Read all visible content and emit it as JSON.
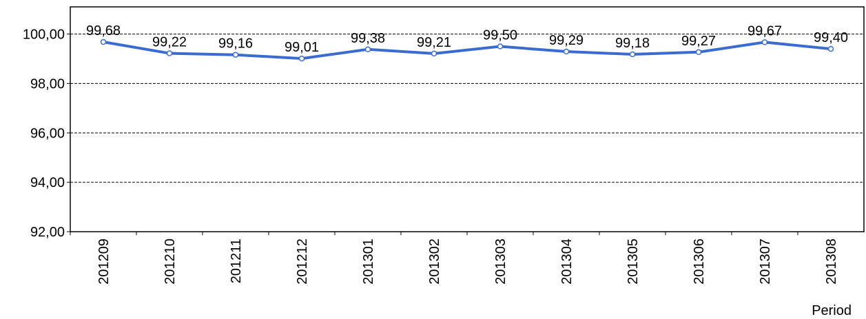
{
  "chart_data": {
    "type": "line",
    "categories": [
      "201209",
      "201210",
      "201211",
      "201212",
      "201301",
      "201302",
      "201303",
      "201304",
      "201305",
      "201306",
      "201307",
      "201308"
    ],
    "series": [
      {
        "color": "#3a6bd0",
        "values": [
          99.68,
          99.22,
          99.16,
          99.01,
          99.38,
          99.21,
          99.5,
          99.29,
          99.18,
          99.27,
          99.67,
          99.4
        ],
        "value_labels": [
          "99,68",
          "99,22",
          "99,16",
          "99,01",
          "99,38",
          "99,21",
          "99,50",
          "99,29",
          "99,18",
          "99,27",
          "99,67",
          "99,40"
        ]
      }
    ],
    "ylim": [
      92,
      101.1
    ],
    "yticks": [
      {
        "value": 92,
        "label": "92,00"
      },
      {
        "value": 94,
        "label": "94,00"
      },
      {
        "value": 96,
        "label": "96,00"
      },
      {
        "value": 98,
        "label": "98,00"
      },
      {
        "value": 100,
        "label": "100,00"
      }
    ],
    "x_label": "Period",
    "grid": true
  }
}
